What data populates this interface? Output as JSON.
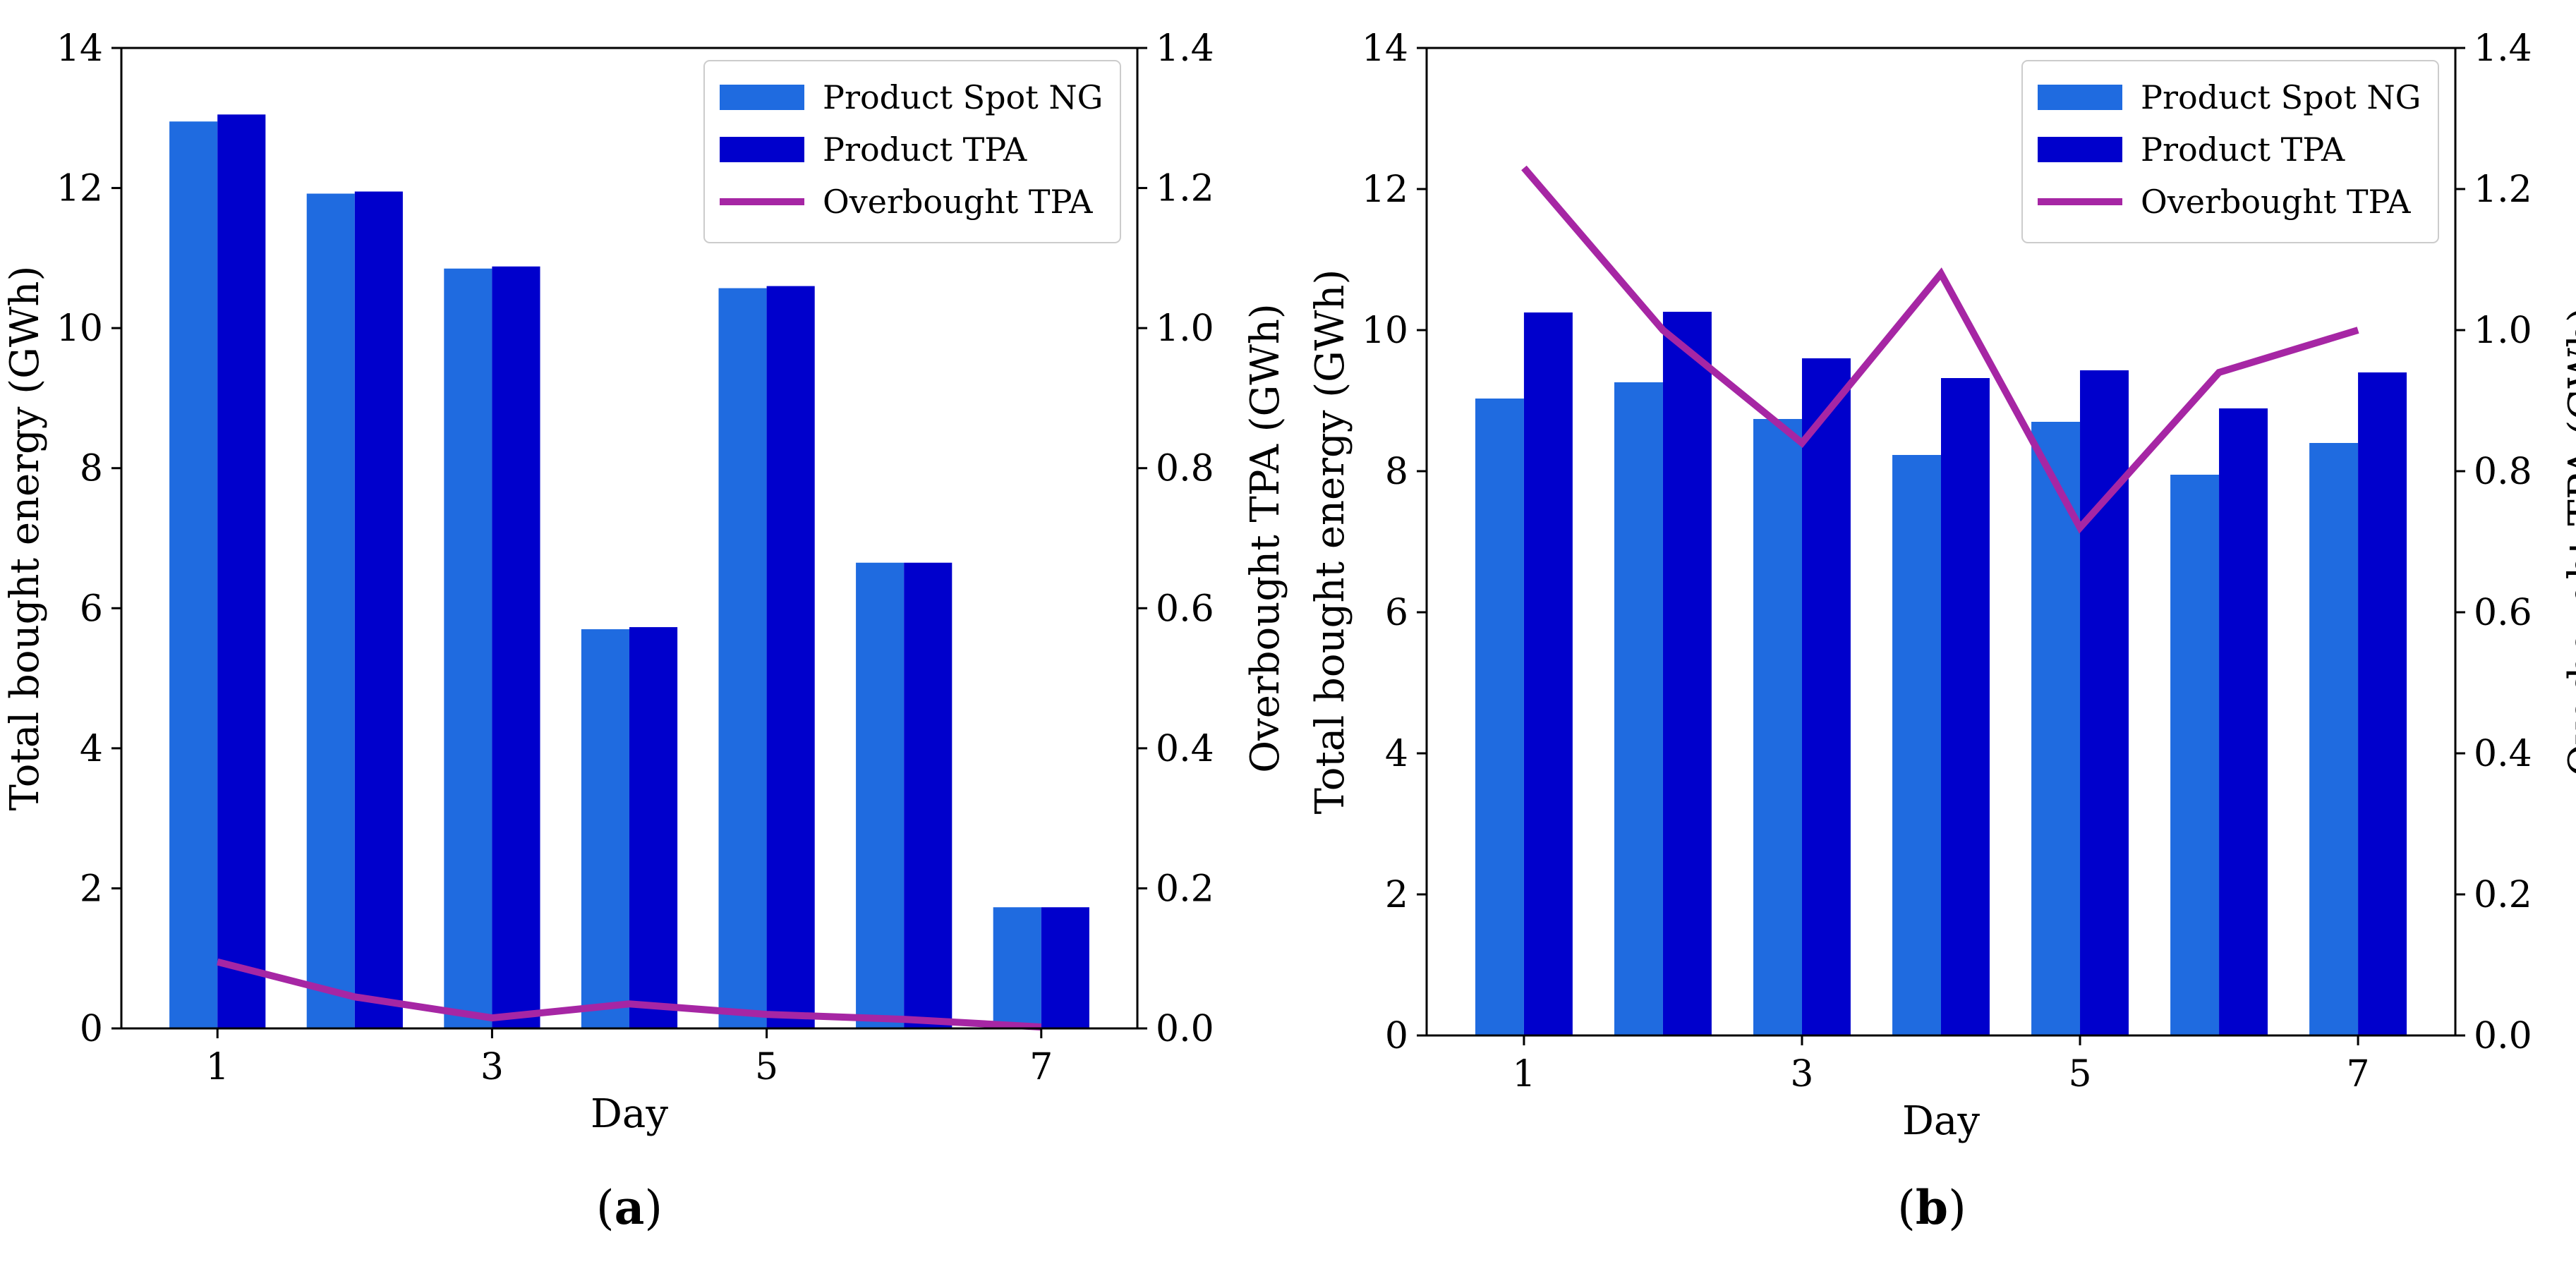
{
  "colors": {
    "spot": "#1f6be0",
    "tpa": "#0000cc",
    "overbought": "#a626a4"
  },
  "chart_data": [
    {
      "id": "a",
      "panel_label": "(a)",
      "type": "bar",
      "categories": [
        1,
        2,
        3,
        4,
        5,
        6,
        7
      ],
      "xticks": [
        "1",
        "3",
        "5",
        "7"
      ],
      "xlabel": "Day",
      "ylabel": "Total bought energy (GWh)",
      "y2label": "Overbought TPA (GWh)",
      "ylim": [
        0,
        14
      ],
      "y2lim": [
        0,
        1.4
      ],
      "yticks": [
        "0",
        "2",
        "4",
        "6",
        "8",
        "10",
        "12",
        "14"
      ],
      "y2ticks": [
        "0.0",
        "0.2",
        "0.4",
        "0.6",
        "0.8",
        "1.0",
        "1.2",
        "1.4"
      ],
      "legend": [
        "Product Spot NG",
        "Product TPA",
        "Overbought TPA"
      ],
      "series": [
        {
          "name": "Product Spot NG",
          "type": "bar",
          "values": [
            12.95,
            11.92,
            10.85,
            5.7,
            10.57,
            6.65,
            1.73
          ]
        },
        {
          "name": "Product TPA",
          "type": "bar",
          "values": [
            13.05,
            11.95,
            10.88,
            5.73,
            10.6,
            6.65,
            1.73
          ]
        },
        {
          "name": "Overbought TPA",
          "type": "line",
          "axis": "right",
          "values": [
            0.095,
            0.045,
            0.015,
            0.035,
            0.02,
            0.013,
            0.002
          ]
        }
      ]
    },
    {
      "id": "b",
      "panel_label": "(b)",
      "type": "bar",
      "categories": [
        1,
        2,
        3,
        4,
        5,
        6,
        7
      ],
      "xticks": [
        "1",
        "3",
        "5",
        "7"
      ],
      "xlabel": "Day",
      "ylabel": "Total bought energy (GWh)",
      "y2label": "Overbought TPA (GWh)",
      "ylim": [
        0,
        14
      ],
      "y2lim": [
        0,
        1.4
      ],
      "yticks": [
        "0",
        "2",
        "4",
        "6",
        "8",
        "10",
        "12",
        "14"
      ],
      "y2ticks": [
        "0.0",
        "0.2",
        "0.4",
        "0.6",
        "0.8",
        "1.0",
        "1.2",
        "1.4"
      ],
      "legend": [
        "Product Spot NG",
        "Product TPA",
        "Overbought TPA"
      ],
      "series": [
        {
          "name": "Product Spot NG",
          "type": "bar",
          "values": [
            9.03,
            9.26,
            8.74,
            8.23,
            8.7,
            7.95,
            8.4
          ]
        },
        {
          "name": "Product TPA",
          "type": "bar",
          "values": [
            10.25,
            10.26,
            9.6,
            9.32,
            9.43,
            8.89,
            9.4
          ]
        },
        {
          "name": "Overbought TPA",
          "type": "line",
          "axis": "right",
          "values": [
            1.23,
            1.0,
            0.84,
            1.08,
            0.72,
            0.94,
            1.0
          ]
        }
      ]
    }
  ]
}
